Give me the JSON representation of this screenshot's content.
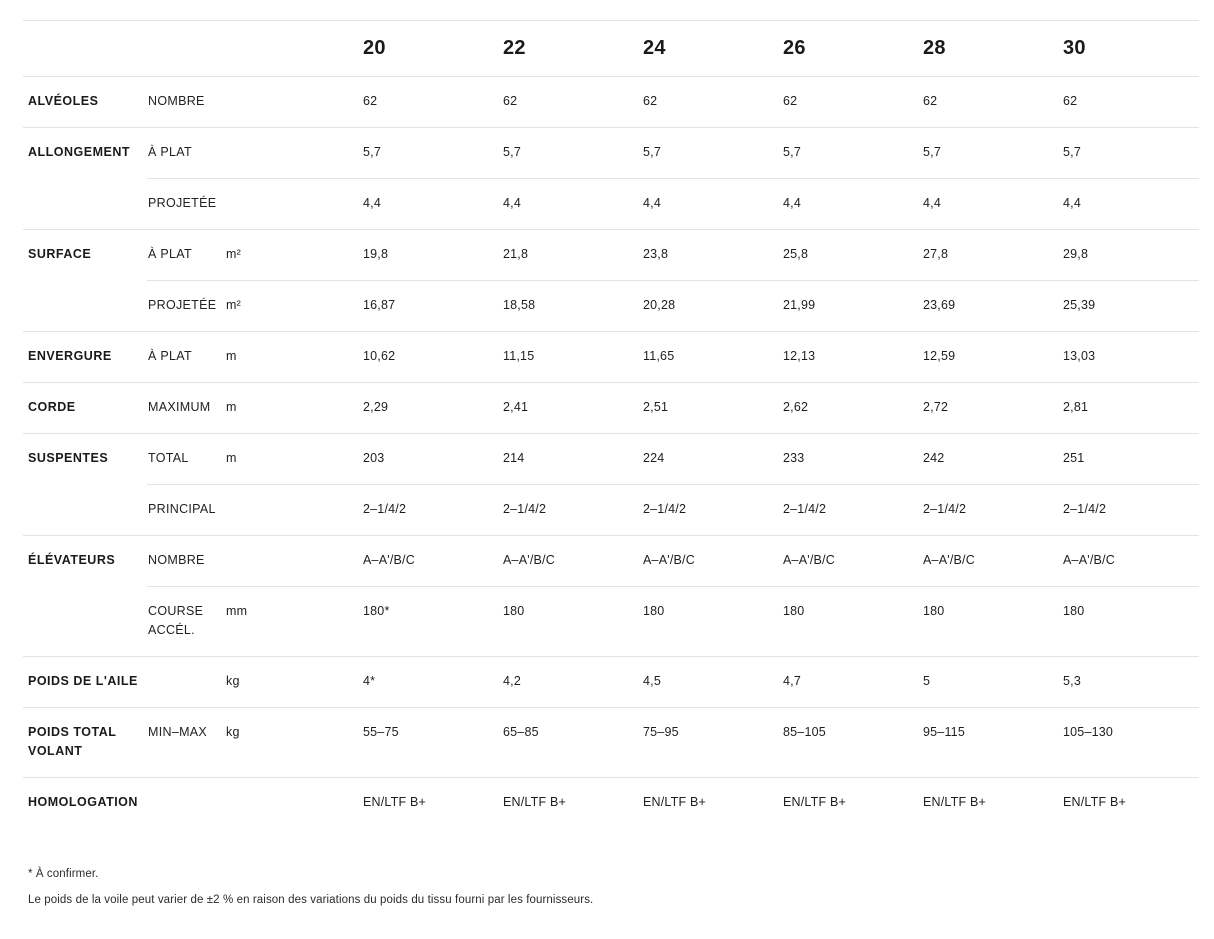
{
  "table": {
    "sizes": [
      "20",
      "22",
      "24",
      "26",
      "28",
      "30"
    ],
    "rows": [
      {
        "group": "ALVÉOLES",
        "sub": "NOMBRE",
        "unit": "",
        "values": [
          "62",
          "62",
          "62",
          "62",
          "62",
          "62"
        ]
      },
      {
        "group": "ALLONGEMENT",
        "sub": "À PLAT",
        "unit": "",
        "values": [
          "5,7",
          "5,7",
          "5,7",
          "5,7",
          "5,7",
          "5,7"
        ]
      },
      {
        "group": "",
        "sub": "PROJETÉE",
        "unit": "",
        "values": [
          "4,4",
          "4,4",
          "4,4",
          "4,4",
          "4,4",
          "4,4"
        ]
      },
      {
        "group": "SURFACE",
        "sub": "À PLAT",
        "unit": "m²",
        "values": [
          "19,8",
          "21,8",
          "23,8",
          "25,8",
          "27,8",
          "29,8"
        ]
      },
      {
        "group": "",
        "sub": "PROJETÉE",
        "unit": "m²",
        "values": [
          "16,87",
          "18,58",
          "20,28",
          "21,99",
          "23,69",
          "25,39"
        ]
      },
      {
        "group": "ENVERGURE",
        "sub": "À PLAT",
        "unit": "m",
        "values": [
          "10,62",
          "11,15",
          "11,65",
          "12,13",
          "12,59",
          "13,03"
        ]
      },
      {
        "group": "CORDE",
        "sub": "MAXIMUM",
        "unit": "m",
        "values": [
          "2,29",
          "2,41",
          "2,51",
          "2,62",
          "2,72",
          "2,81"
        ]
      },
      {
        "group": "SUSPENTES",
        "sub": "TOTAL",
        "unit": "m",
        "values": [
          "203",
          "214",
          "224",
          "233",
          "242",
          "251"
        ]
      },
      {
        "group": "",
        "sub": "PRINCIPAL",
        "unit": "",
        "values": [
          "2–1/4/2",
          "2–1/4/2",
          "2–1/4/2",
          "2–1/4/2",
          "2–1/4/2",
          "2–1/4/2"
        ]
      },
      {
        "group": "ÉLÉVATEURS",
        "sub": "NOMBRE",
        "unit": "",
        "values": [
          "A–A'/B/C",
          "A–A'/B/C",
          "A–A'/B/C",
          "A–A'/B/C",
          "A–A'/B/C",
          "A–A'/B/C"
        ]
      },
      {
        "group": "",
        "sub": "COURSE ACCÉL.",
        "unit": "mm",
        "values": [
          "180*",
          "180",
          "180",
          "180",
          "180",
          "180"
        ]
      },
      {
        "group": "POIDS DE L'AILE",
        "sub": "",
        "unit": "kg",
        "values": [
          "4*",
          "4,2",
          "4,5",
          "4,7",
          "5",
          "5,3"
        ]
      },
      {
        "group": "POIDS TOTAL VOLANT",
        "sub": "MIN–MAX",
        "unit": "kg",
        "values": [
          "55–75",
          "65–85",
          "75–95",
          "85–105",
          "95–115",
          "105–130"
        ]
      },
      {
        "group": "HOMOLOGATION",
        "sub": "",
        "unit": "",
        "values": [
          "EN/LTF B+",
          "EN/LTF B+",
          "EN/LTF B+",
          "EN/LTF B+",
          "EN/LTF B+",
          "EN/LTF B+"
        ]
      }
    ]
  },
  "footnotes": [
    "* À confirmer.",
    "Le poids de la voile peut varier de ±2 % en raison des variations du poids du tissu fourni par les fournisseurs."
  ]
}
